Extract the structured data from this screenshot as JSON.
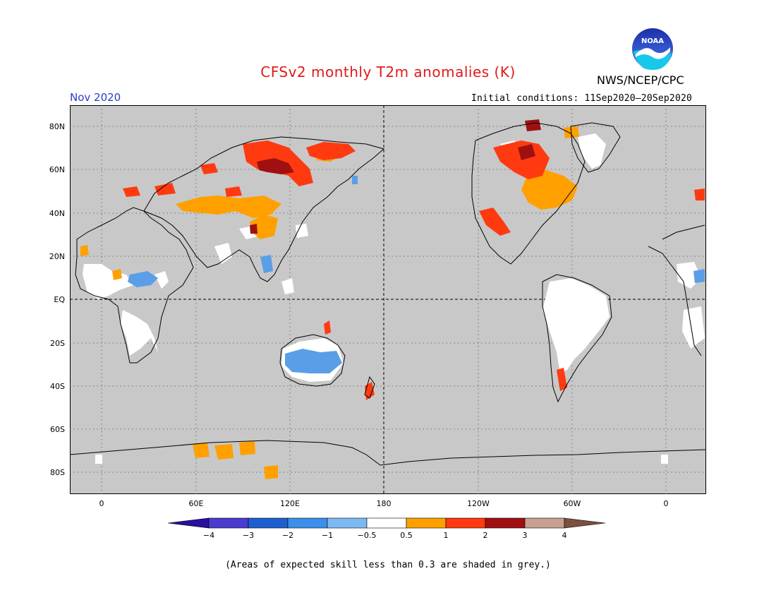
{
  "title": "CFSv2 monthly T2m anomalies (K)",
  "agency": "NWS/NCEP/CPC",
  "month": "Nov 2020",
  "initial_conditions": "Initial conditions: 11Sep2020–20Sep2020",
  "logo_text": "NOAA",
  "lat_labels": [
    "80N",
    "60N",
    "40N",
    "20N",
    "EQ",
    "20S",
    "40S",
    "60S",
    "80S"
  ],
  "lon_labels": [
    "0",
    "60E",
    "120E",
    "180",
    "120W",
    "60W",
    "0"
  ],
  "colorbar": {
    "ticks": [
      "−4",
      "−3",
      "−2",
      "−1",
      "−0.5",
      "0.5",
      "1",
      "2",
      "3",
      "4"
    ],
    "colors": [
      "#2a0fa0",
      "#4a3ccf",
      "#1e5fd0",
      "#3c8fea",
      "#7cb9f2",
      "#ffffff",
      "#ffa000",
      "#ff3a10",
      "#a01010",
      "#c8a090",
      "#7a5040"
    ]
  },
  "note": "(Areas of expected skill less than 0.3 are shaded in grey.)",
  "colors": {
    "grey_background": "#c8c8c8",
    "title_red": "#e01a1a",
    "month_blue": "#2a3ccc"
  }
}
